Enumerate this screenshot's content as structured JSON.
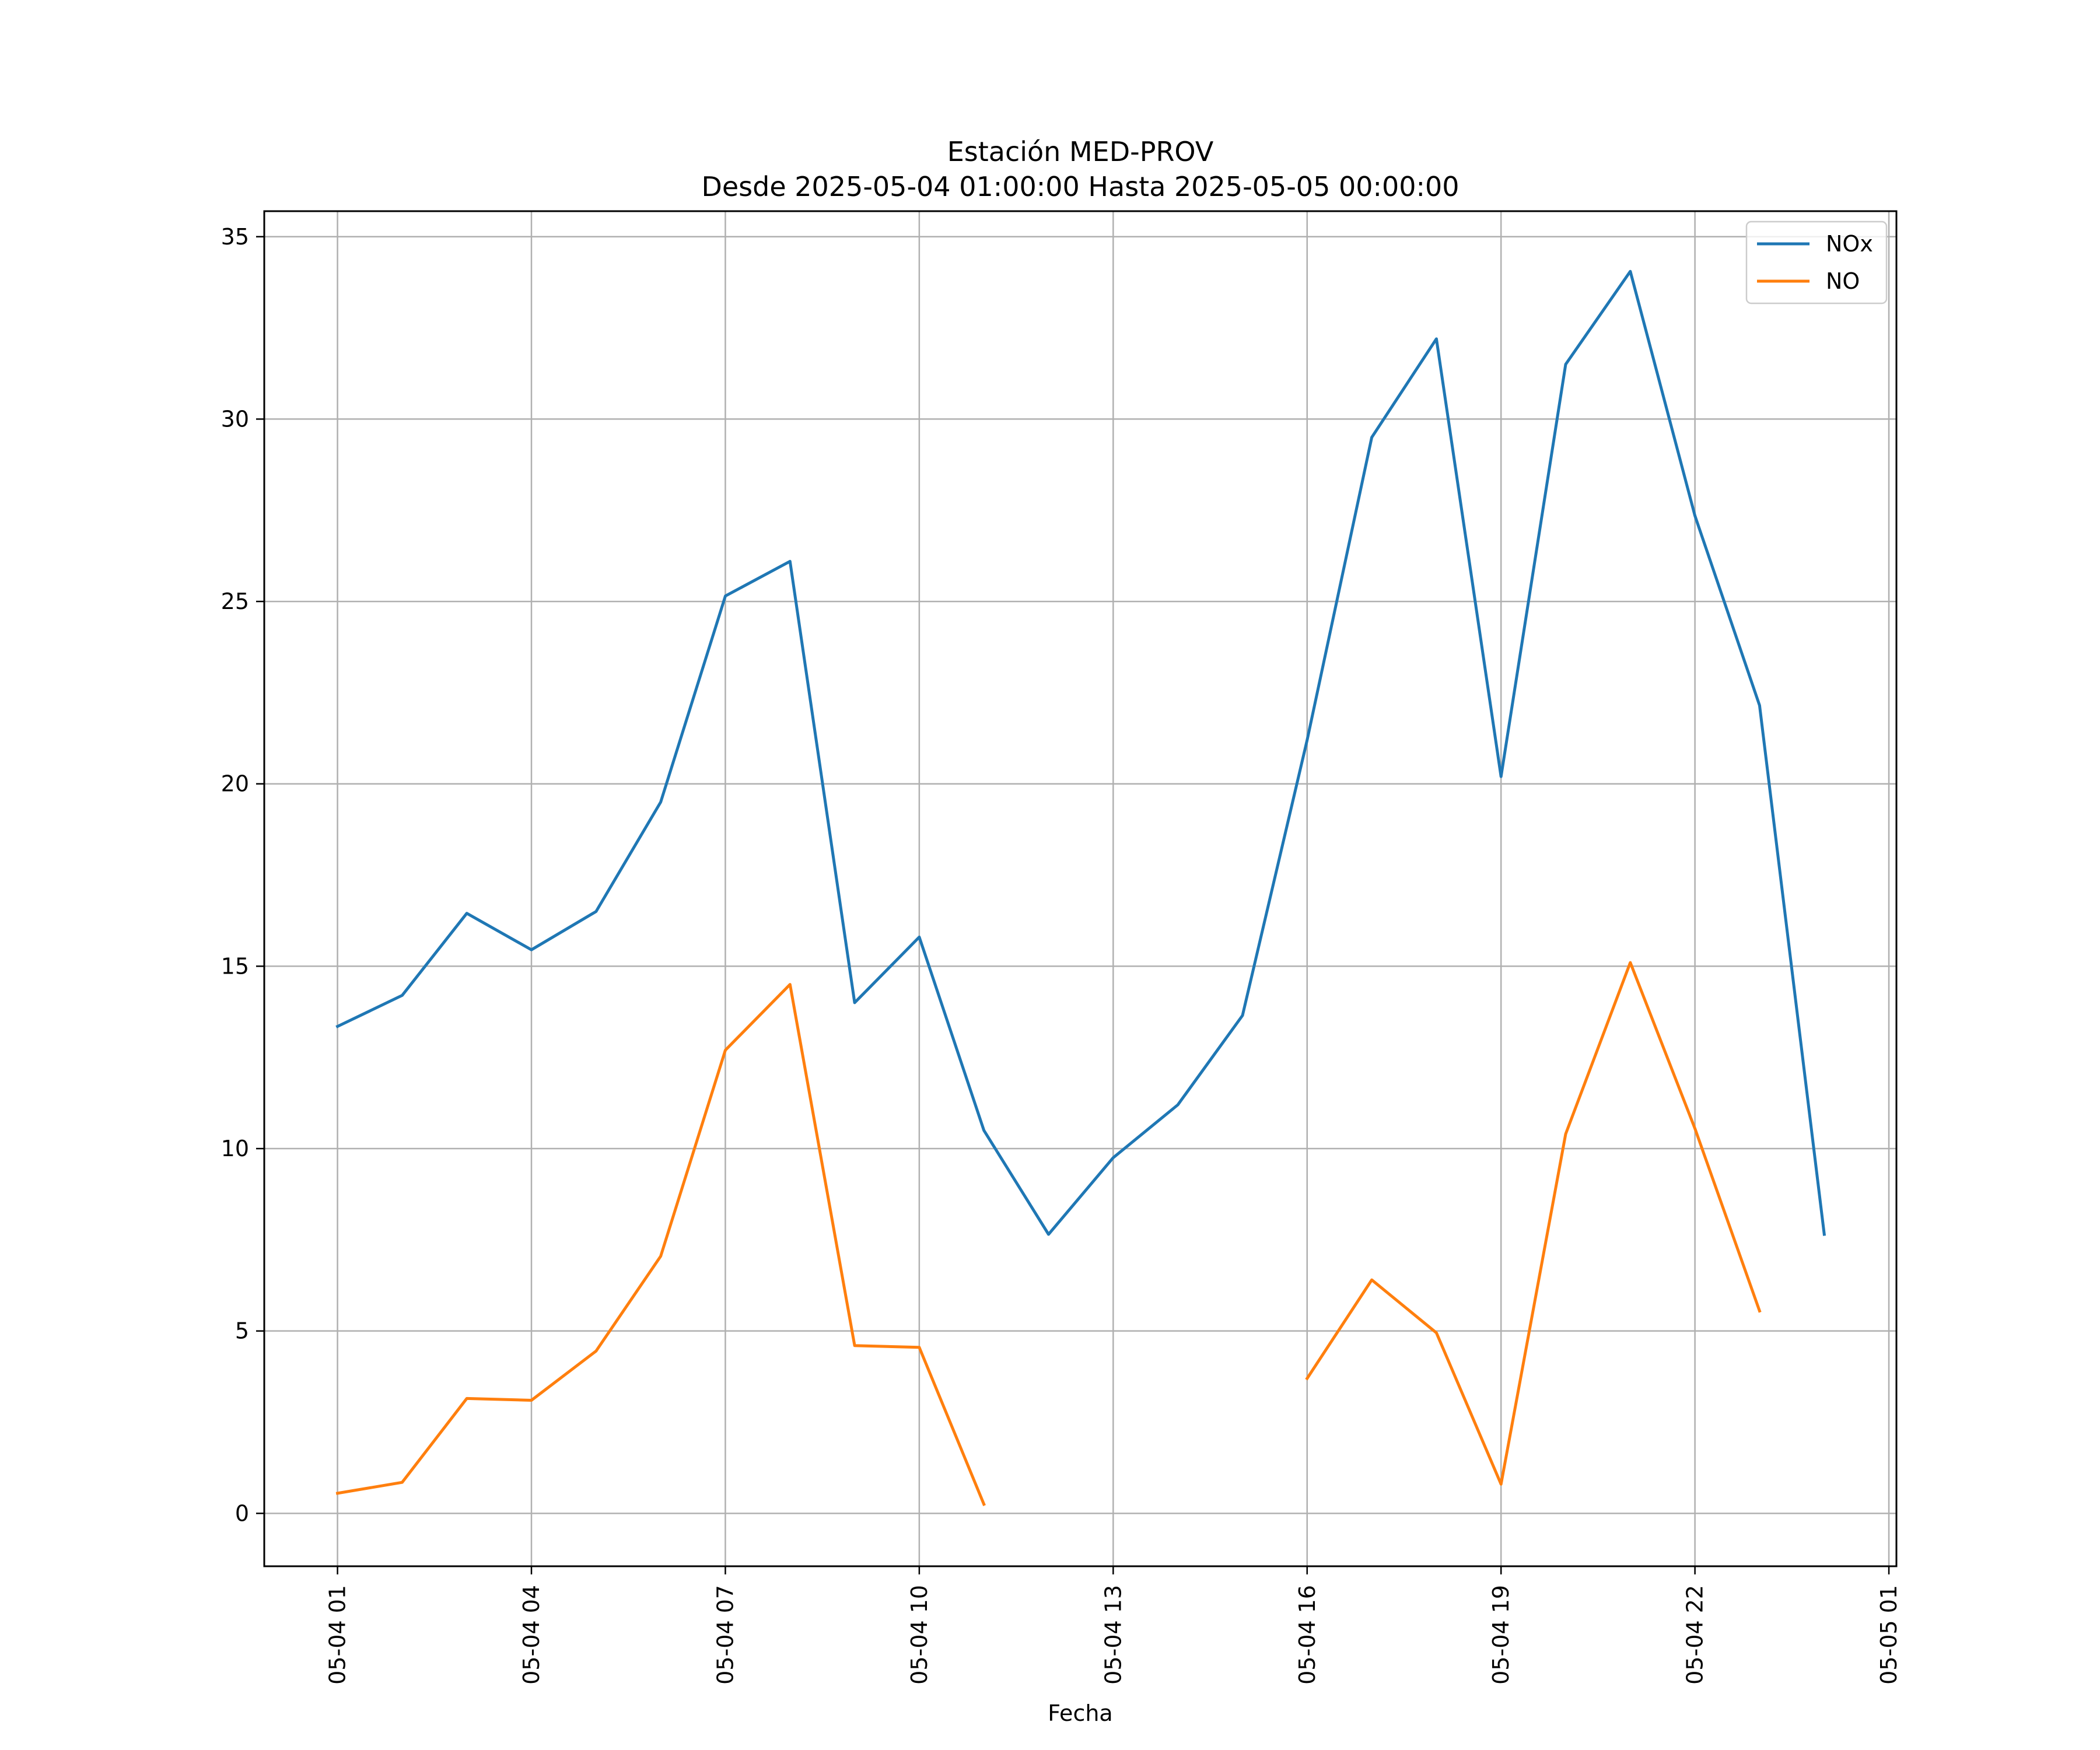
{
  "chart_data": {
    "type": "line",
    "title": "Estación MED-PROV",
    "subtitle": "Desde 2025-05-04 01:00:00 Hasta 2025-05-05 00:00:00",
    "xlabel": "Fecha",
    "ylabel": "",
    "x": [
      "2025-05-04 01:00",
      "2025-05-04 02:00",
      "2025-05-04 03:00",
      "2025-05-04 04:00",
      "2025-05-04 05:00",
      "2025-05-04 06:00",
      "2025-05-04 07:00",
      "2025-05-04 08:00",
      "2025-05-04 09:00",
      "2025-05-04 10:00",
      "2025-05-04 11:00",
      "2025-05-04 12:00",
      "2025-05-04 13:00",
      "2025-05-04 14:00",
      "2025-05-04 15:00",
      "2025-05-04 16:00",
      "2025-05-04 17:00",
      "2025-05-04 18:00",
      "2025-05-04 19:00",
      "2025-05-04 20:00",
      "2025-05-04 21:00",
      "2025-05-04 22:00",
      "2025-05-04 23:00",
      "2025-05-05 00:00"
    ],
    "x_ticks": [
      "05-04 01",
      "05-04 04",
      "05-04 07",
      "05-04 10",
      "05-04 13",
      "05-04 16",
      "05-04 19",
      "05-04 22",
      "05-05 01"
    ],
    "x_tick_dates": [
      "2025-05-04 01:00",
      "2025-05-04 04:00",
      "2025-05-04 07:00",
      "2025-05-04 10:00",
      "2025-05-04 13:00",
      "2025-05-04 16:00",
      "2025-05-04 19:00",
      "2025-05-04 22:00",
      "2025-05-05 01:00"
    ],
    "xlim": [
      "2025-05-03 23:52",
      "2025-05-05 01:07"
    ],
    "y_ticks": [
      0,
      5,
      10,
      15,
      20,
      25,
      30,
      35
    ],
    "ylim": [
      -1.45,
      35.7
    ],
    "grid": true,
    "legend_position": "top-right",
    "series": [
      {
        "name": "NOx",
        "color": "#1f77b4",
        "values": [
          13.35,
          14.2,
          16.45,
          15.45,
          16.5,
          19.5,
          25.15,
          26.1,
          14.0,
          15.8,
          10.5,
          7.65,
          9.75,
          11.2,
          13.65,
          21.2,
          29.5,
          32.2,
          20.2,
          31.5,
          34.05,
          27.35,
          22.15,
          7.65
        ]
      },
      {
        "name": "NO",
        "color": "#ff7f0e",
        "values": [
          0.55,
          0.85,
          3.15,
          3.1,
          4.45,
          7.05,
          12.7,
          14.5,
          4.6,
          4.55,
          0.25,
          null,
          null,
          null,
          null,
          3.7,
          6.4,
          4.95,
          0.8,
          10.4,
          15.1,
          10.55,
          5.55,
          null
        ]
      }
    ]
  }
}
